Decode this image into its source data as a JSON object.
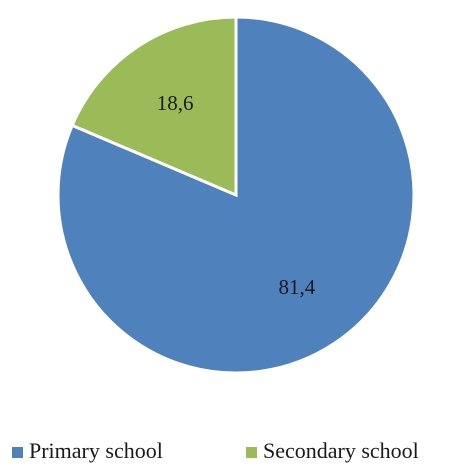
{
  "chart_data": {
    "type": "pie",
    "categories": [
      "Primary school",
      "Secondary school"
    ],
    "values": [
      81.4,
      18.6
    ],
    "value_labels": [
      "81,4",
      "18,6"
    ],
    "colors": [
      "#4F81BD",
      "#9BBB59"
    ],
    "legend_position": "bottom",
    "start_angle": "12 o'clock",
    "direction": "clockwise"
  }
}
